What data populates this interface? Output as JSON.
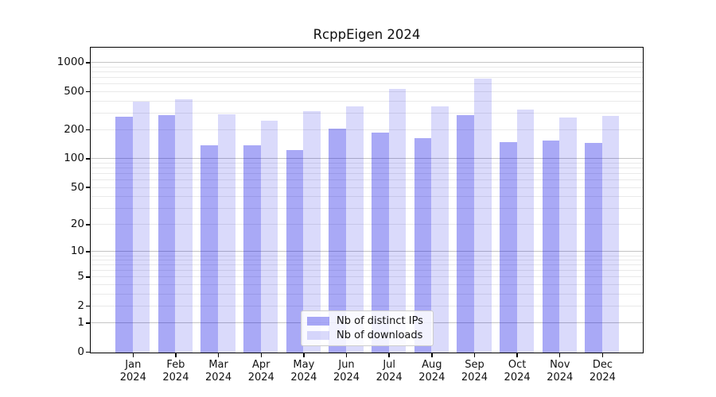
{
  "chart_data": {
    "type": "bar",
    "title": "RcppEigen 2024",
    "categories": [
      "Jan",
      "Feb",
      "Mar",
      "Apr",
      "May",
      "Jun",
      "Jul",
      "Aug",
      "Sep",
      "Oct",
      "Nov",
      "Dec"
    ],
    "year_label": "2024",
    "series": [
      {
        "name": "Nb of distinct IPs",
        "color": "rgba(10,10,230,0.35)",
        "values": [
          275,
          289,
          139,
          141,
          125,
          210,
          189,
          166,
          289,
          150,
          156,
          147
        ]
      },
      {
        "name": "Nb of downloads",
        "color": "rgba(10,10,230,0.15)",
        "values": [
          400,
          420,
          294,
          252,
          314,
          356,
          541,
          352,
          695,
          332,
          272,
          283
        ]
      }
    ],
    "y_axis": {
      "scale": "log10(value+1)",
      "tick_labels": [
        0,
        1,
        2,
        5,
        10,
        20,
        50,
        100,
        200,
        500,
        1000
      ],
      "major_gridlines": [
        1,
        10,
        100,
        1000
      ],
      "minor_gridlines": [
        2,
        3,
        4,
        5,
        6,
        7,
        8,
        9,
        20,
        30,
        40,
        50,
        60,
        70,
        80,
        90,
        200,
        300,
        400,
        500,
        600,
        700,
        800,
        900
      ]
    },
    "legend": {
      "position": "bottom-center"
    },
    "colors": {
      "major_grid": "#c4c4c4",
      "minor_grid": "#e9e9e9",
      "axis": "#000000",
      "text": "#111111",
      "background": "#ffffff"
    }
  }
}
